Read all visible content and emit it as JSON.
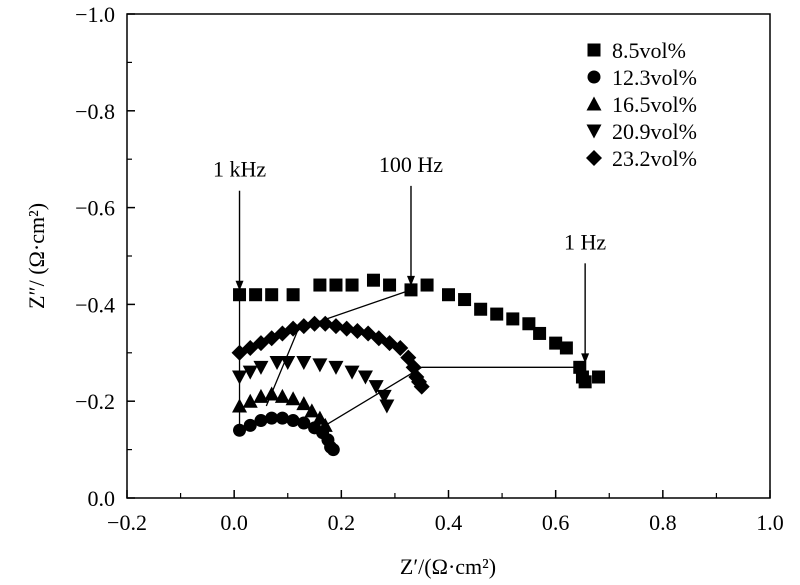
{
  "chart_data": {
    "type": "scatter",
    "xlabel": "Z′/(Ω·cm²)",
    "ylabel": "Z″/ (Ω·cm²)",
    "xlim": [
      -0.2,
      1.0
    ],
    "ylim": [
      0.0,
      -1.0
    ],
    "y_axis_inverted": true,
    "xticks": [
      "−0.2",
      "0.0",
      "0.2",
      "0.4",
      "0.6",
      "0.8",
      "1.0"
    ],
    "yticks": [
      "0.0",
      "−0.2",
      "−0.4",
      "−0.6",
      "−0.8",
      "−1.0"
    ],
    "legend_position": "top-right",
    "grid": false,
    "series": [
      {
        "name": "8.5vol%",
        "marker": "square",
        "x": [
          0.01,
          0.04,
          0.07,
          0.11,
          0.16,
          0.19,
          0.22,
          0.26,
          0.29,
          0.33,
          0.36,
          0.4,
          0.43,
          0.46,
          0.49,
          0.52,
          0.55,
          0.57,
          0.6,
          0.62,
          0.645,
          0.65,
          0.655,
          0.68
        ],
        "y": [
          -0.42,
          -0.42,
          -0.42,
          -0.42,
          -0.44,
          -0.44,
          -0.44,
          -0.45,
          -0.44,
          -0.43,
          -0.44,
          -0.42,
          -0.41,
          -0.39,
          -0.38,
          -0.37,
          -0.36,
          -0.34,
          -0.32,
          -0.31,
          -0.27,
          -0.25,
          -0.24,
          -0.25
        ]
      },
      {
        "name": "12.3vol%",
        "marker": "circle",
        "x": [
          0.01,
          0.03,
          0.05,
          0.07,
          0.09,
          0.11,
          0.13,
          0.15,
          0.165,
          0.175,
          0.18,
          0.185
        ],
        "y": [
          -0.14,
          -0.15,
          -0.16,
          -0.165,
          -0.165,
          -0.16,
          -0.155,
          -0.145,
          -0.135,
          -0.12,
          -0.105,
          -0.1
        ]
      },
      {
        "name": "16.5vol%",
        "marker": "triangle-up",
        "x": [
          0.01,
          0.03,
          0.05,
          0.07,
          0.09,
          0.11,
          0.13,
          0.145,
          0.16,
          0.17
        ],
        "y": [
          -0.19,
          -0.2,
          -0.21,
          -0.215,
          -0.21,
          -0.205,
          -0.195,
          -0.18,
          -0.165,
          -0.15
        ]
      },
      {
        "name": "20.9vol%",
        "marker": "triangle-down",
        "x": [
          0.01,
          0.03,
          0.05,
          0.08,
          0.1,
          0.13,
          0.16,
          0.19,
          0.22,
          0.245,
          0.265,
          0.28,
          0.285
        ],
        "y": [
          -0.25,
          -0.26,
          -0.27,
          -0.28,
          -0.28,
          -0.28,
          -0.275,
          -0.27,
          -0.26,
          -0.25,
          -0.23,
          -0.21,
          -0.19
        ]
      },
      {
        "name": "23.2vol%",
        "marker": "diamond",
        "x": [
          0.01,
          0.03,
          0.05,
          0.07,
          0.09,
          0.11,
          0.13,
          0.15,
          0.17,
          0.19,
          0.21,
          0.23,
          0.25,
          0.27,
          0.29,
          0.31,
          0.325,
          0.335,
          0.34,
          0.345,
          0.35
        ],
        "y": [
          -0.3,
          -0.31,
          -0.32,
          -0.33,
          -0.34,
          -0.35,
          -0.355,
          -0.36,
          -0.36,
          -0.355,
          -0.35,
          -0.345,
          -0.34,
          -0.33,
          -0.32,
          -0.31,
          -0.29,
          -0.27,
          -0.25,
          -0.24,
          -0.23
        ]
      }
    ],
    "connector_lines": [
      {
        "points": [
          [
            0.01,
            -0.42
          ],
          [
            0.01,
            -0.14
          ]
        ]
      },
      {
        "points": [
          [
            0.06,
            -0.19
          ],
          [
            0.12,
            -0.35
          ],
          [
            0.33,
            -0.43
          ]
        ]
      },
      {
        "points": [
          [
            0.17,
            -0.15
          ],
          [
            0.35,
            -0.27
          ],
          [
            0.65,
            -0.27
          ]
        ]
      }
    ],
    "annotations": [
      {
        "text": "1 kHz",
        "x": 0.01,
        "y": -0.42
      },
      {
        "text": "100 Hz",
        "x": 0.33,
        "y": -0.43
      },
      {
        "text": "1 Hz",
        "x": 0.655,
        "y": -0.27
      }
    ]
  }
}
